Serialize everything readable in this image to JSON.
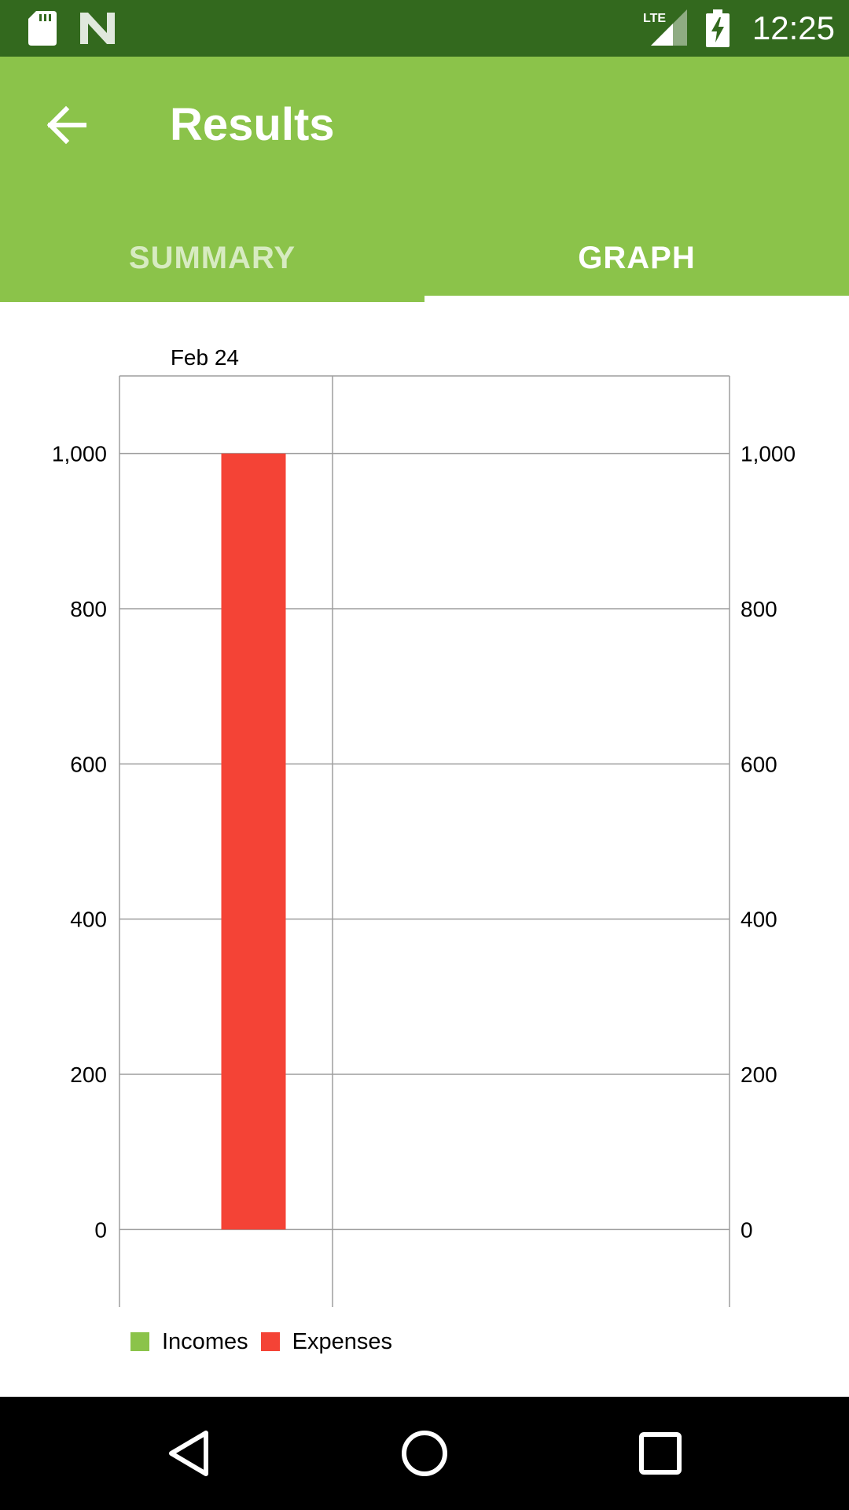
{
  "status_bar": {
    "time": "12:25",
    "network": "LTE",
    "icons": [
      "sd-card-icon",
      "n-icon",
      "lte-signal-icon",
      "battery-charging-icon"
    ]
  },
  "app_bar": {
    "title": "Results",
    "back_icon": "arrow-back-icon",
    "tabs": [
      {
        "label": "SUMMARY",
        "selected": false
      },
      {
        "label": "GRAPH",
        "selected": true
      }
    ]
  },
  "colors": {
    "status_bar": "#33691E",
    "primary": "#8BC34A",
    "incomes": "#8BC34A",
    "expenses": "#F44336"
  },
  "chart_data": {
    "type": "bar",
    "categories": [
      "Feb 24"
    ],
    "series": [
      {
        "name": "Incomes",
        "values": [
          0
        ],
        "color": "#8BC34A"
      },
      {
        "name": "Expenses",
        "values": [
          1000
        ],
        "color": "#F44336"
      }
    ],
    "yticks": [
      "0",
      "200",
      "400",
      "600",
      "800",
      "1,000"
    ],
    "ytick_values": [
      0,
      200,
      400,
      600,
      800,
      1000
    ],
    "ylim": [
      -100,
      1100
    ],
    "grid": true,
    "legend_position": "bottom-left",
    "xlabel_position": "top"
  },
  "nav_bar": {
    "icons": [
      "back-triangle-icon",
      "home-circle-icon",
      "recents-square-icon"
    ]
  }
}
